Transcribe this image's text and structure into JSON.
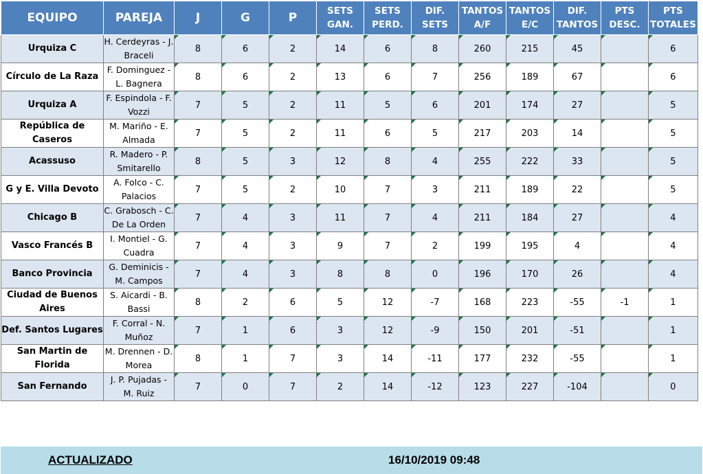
{
  "headers": {
    "equipo": "EQUIPO",
    "pareja": "PAREJA",
    "j": "J",
    "g": "G",
    "p": "P",
    "sets_gan": [
      "SETS",
      "GAN."
    ],
    "sets_perd": [
      "SETS",
      "PERD."
    ],
    "dif_sets": "DIF. SETS",
    "tantos_af": [
      "TANTOS",
      "A/F"
    ],
    "tantos_ec": [
      "TANTOS",
      "E/C"
    ],
    "dif_tantos": [
      "DIF.",
      "TANTOS"
    ],
    "pts_desc": [
      "PTS",
      "DESC."
    ],
    "pts_totales": [
      "PTS",
      "TOTALES"
    ]
  },
  "rows": [
    {
      "team": [
        "Urquiza C"
      ],
      "pair": [
        "H. Cerdeyras - J.",
        "Braceli"
      ],
      "j": "8",
      "g": "6",
      "p": "2",
      "sg": "14",
      "sp": "6",
      "ds": "8",
      "taf": "260",
      "tec": "215",
      "dt": "45",
      "pd": "",
      "pt": "6"
    },
    {
      "team": [
        "Círculo de La Raza"
      ],
      "pair": [
        "F. Dominguez -",
        "L. Bagnera"
      ],
      "j": "8",
      "g": "6",
      "p": "2",
      "sg": "13",
      "sp": "6",
      "ds": "7",
      "taf": "256",
      "tec": "189",
      "dt": "67",
      "pd": "",
      "pt": "6"
    },
    {
      "team": [
        "Urquiza A"
      ],
      "pair": [
        "F. Espindola - F.",
        "Vozzi"
      ],
      "j": "7",
      "g": "5",
      "p": "2",
      "sg": "11",
      "sp": "5",
      "ds": "6",
      "taf": "201",
      "tec": "174",
      "dt": "27",
      "pd": "",
      "pt": "5"
    },
    {
      "team": [
        "República de Caseros"
      ],
      "pair": [
        "M. Mariño - E.",
        "Almada"
      ],
      "j": "7",
      "g": "5",
      "p": "2",
      "sg": "11",
      "sp": "6",
      "ds": "5",
      "taf": "217",
      "tec": "203",
      "dt": "14",
      "pd": "",
      "pt": "5"
    },
    {
      "team": [
        "Acassuso"
      ],
      "pair": [
        "R. Madero - P.",
        "Smitarello"
      ],
      "j": "8",
      "g": "5",
      "p": "3",
      "sg": "12",
      "sp": "8",
      "ds": "4",
      "taf": "255",
      "tec": "222",
      "dt": "33",
      "pd": "",
      "pt": "5"
    },
    {
      "team": [
        "G y E. Villa Devoto"
      ],
      "pair": [
        "A. Folco - C.",
        "Palacios"
      ],
      "j": "7",
      "g": "5",
      "p": "2",
      "sg": "10",
      "sp": "7",
      "ds": "3",
      "taf": "211",
      "tec": "189",
      "dt": "22",
      "pd": "",
      "pt": "5"
    },
    {
      "team": [
        "Chicago B"
      ],
      "pair": [
        "C. Grabosch - C.",
        "De La Orden"
      ],
      "j": "7",
      "g": "4",
      "p": "3",
      "sg": "11",
      "sp": "7",
      "ds": "4",
      "taf": "211",
      "tec": "184",
      "dt": "27",
      "pd": "",
      "pt": "4"
    },
    {
      "team": [
        "Vasco Francés B"
      ],
      "pair": [
        "I. Montiel - G.",
        "Cuadra"
      ],
      "j": "7",
      "g": "4",
      "p": "3",
      "sg": "9",
      "sp": "7",
      "ds": "2",
      "taf": "199",
      "tec": "195",
      "dt": "4",
      "pd": "",
      "pt": "4"
    },
    {
      "team": [
        "Banco Provincia"
      ],
      "pair": [
        "G. Deminicis -",
        "M. Campos"
      ],
      "j": "7",
      "g": "4",
      "p": "3",
      "sg": "8",
      "sp": "8",
      "ds": "0",
      "taf": "196",
      "tec": "170",
      "dt": "26",
      "pd": "",
      "pt": "4"
    },
    {
      "team": [
        "Ciudad de Buenos",
        "Aires"
      ],
      "pair": [
        "S. Aicardi - B.",
        "Bassi"
      ],
      "j": "8",
      "g": "2",
      "p": "6",
      "sg": "5",
      "sp": "12",
      "ds": "-7",
      "taf": "168",
      "tec": "223",
      "dt": "-55",
      "pd": "-1",
      "pt": "1"
    },
    {
      "team": [
        "Def. Santos Lugares"
      ],
      "pair": [
        "F. Corral - N.",
        "Muñoz"
      ],
      "j": "7",
      "g": "1",
      "p": "6",
      "sg": "3",
      "sp": "12",
      "ds": "-9",
      "taf": "150",
      "tec": "201",
      "dt": "-51",
      "pd": "",
      "pt": "1"
    },
    {
      "team": [
        "San Martin de",
        "Florida"
      ],
      "pair": [
        "M. Drennen - D.",
        "Morea"
      ],
      "j": "8",
      "g": "1",
      "p": "7",
      "sg": "3",
      "sp": "14",
      "ds": "-11",
      "taf": "177",
      "tec": "232",
      "dt": "-55",
      "pd": "",
      "pt": "1"
    },
    {
      "team": [
        "San Fernando"
      ],
      "pair": [
        "J. P. Pujadas -",
        "M. Ruiz"
      ],
      "j": "7",
      "g": "0",
      "p": "7",
      "sg": "2",
      "sp": "14",
      "ds": "-12",
      "taf": "123",
      "tec": "227",
      "dt": "-104",
      "pd": "",
      "pt": "0"
    }
  ],
  "footer": {
    "label": "ACTUALIZADO",
    "timestamp": "16/10/2019 09:48"
  },
  "colors": {
    "header_bg": "#4f81bd",
    "band_row_bg": "#dce6f1",
    "footer_bg": "#b7dde8",
    "comment_marker": "#217346"
  }
}
